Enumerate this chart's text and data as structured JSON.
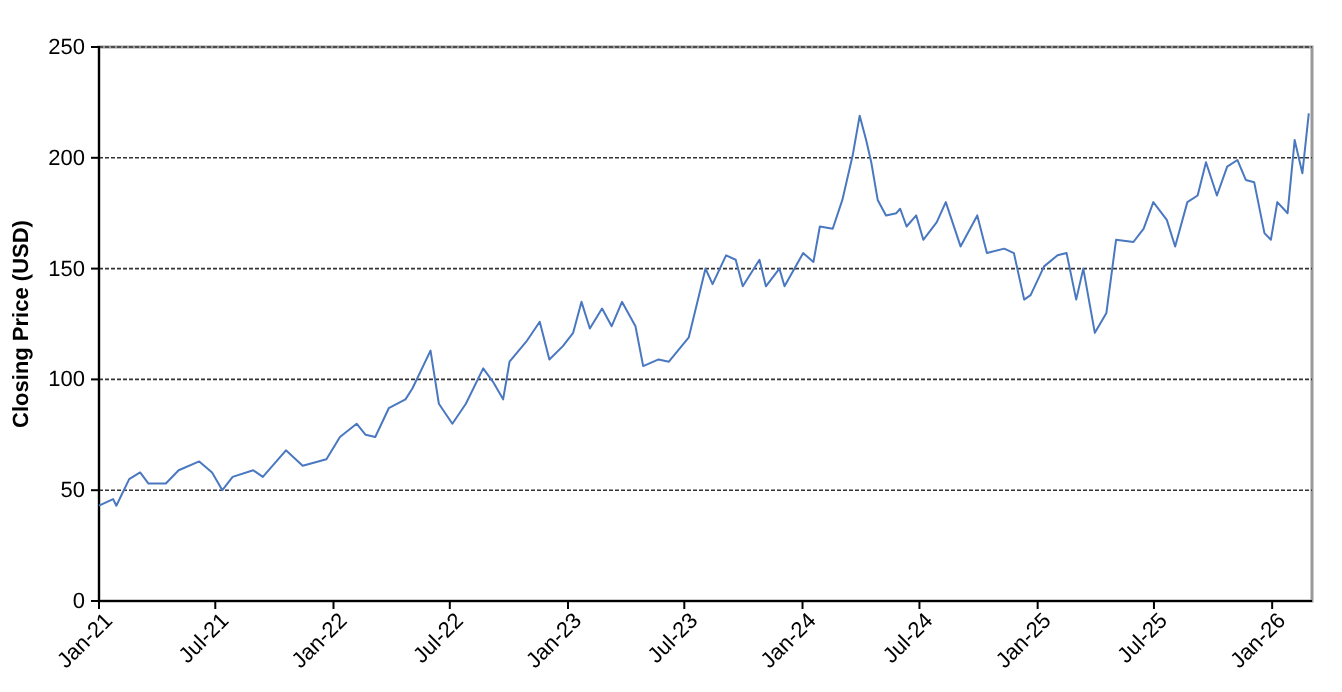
{
  "chart_data": {
    "type": "line",
    "ylabel": "Closing Price (USD)",
    "xlim": [
      "2021-01-01",
      "2026-03-04"
    ],
    "xticks": [
      {
        "value": "2021-01-01",
        "label": "Jan-21"
      },
      {
        "value": "2021-07-01",
        "label": "Jul-21"
      },
      {
        "value": "2022-01-01",
        "label": "Jan-22"
      },
      {
        "value": "2022-07-01",
        "label": "Jul-22"
      },
      {
        "value": "2023-01-01",
        "label": "Jan-23"
      },
      {
        "value": "2023-07-01",
        "label": "Jul-23"
      },
      {
        "value": "2024-01-01",
        "label": "Jan-24"
      },
      {
        "value": "2024-07-01",
        "label": "Jul-24"
      },
      {
        "value": "2025-01-01",
        "label": "Jan-25"
      },
      {
        "value": "2025-07-01",
        "label": "Jul-25"
      },
      {
        "value": "2026-01-01",
        "label": "Jan-26"
      }
    ],
    "ylim": [
      0,
      250
    ],
    "yticks": [
      0,
      50,
      100,
      150,
      200,
      250
    ],
    "grid": "y",
    "x": [
      "2021-01-01",
      "2021-01-23",
      "2021-01-28",
      "2021-02-17",
      "2021-03-06",
      "2021-03-19",
      "2021-04-15",
      "2021-05-05",
      "2021-06-06",
      "2021-06-26",
      "2021-07-12",
      "2021-07-28",
      "2021-08-29",
      "2021-09-13",
      "2021-10-19",
      "2021-11-14",
      "2021-12-21",
      "2022-01-11",
      "2022-02-06",
      "2022-02-20",
      "2022-03-07",
      "2022-03-28",
      "2022-04-23",
      "2022-05-04",
      "2022-06-01",
      "2022-06-14",
      "2022-07-05",
      "2022-07-26",
      "2022-08-22",
      "2022-09-06",
      "2022-09-22",
      "2022-10-02",
      "2022-10-28",
      "2022-11-18",
      "2022-12-03",
      "2022-12-24",
      "2023-01-09",
      "2023-01-22",
      "2023-02-04",
      "2023-02-23",
      "2023-03-10",
      "2023-03-26",
      "2023-04-16",
      "2023-04-28",
      "2023-05-22",
      "2023-06-07",
      "2023-07-08",
      "2023-08-03",
      "2023-08-14",
      "2023-09-04",
      "2023-09-19",
      "2023-09-30",
      "2023-10-26",
      "2023-11-05",
      "2023-11-26",
      "2023-12-04",
      "2024-01-02",
      "2024-01-18",
      "2024-01-28",
      "2024-02-17",
      "2024-03-03",
      "2024-03-19",
      "2024-03-30",
      "2024-04-09",
      "2024-04-17",
      "2024-04-27",
      "2024-05-10",
      "2024-05-26",
      "2024-06-01",
      "2024-06-11",
      "2024-06-26",
      "2024-07-07",
      "2024-07-28",
      "2024-08-11",
      "2024-09-03",
      "2024-09-29",
      "2024-10-14",
      "2024-11-10",
      "2024-11-25",
      "2024-12-11",
      "2024-12-21",
      "2025-01-11",
      "2025-02-01",
      "2025-02-15",
      "2025-03-02",
      "2025-03-13",
      "2025-03-31",
      "2025-04-18",
      "2025-05-03",
      "2025-05-30",
      "2025-06-15",
      "2025-06-30",
      "2025-07-21",
      "2025-08-03",
      "2025-08-22",
      "2025-09-07",
      "2025-09-20",
      "2025-10-07",
      "2025-10-23",
      "2025-11-08",
      "2025-11-21",
      "2025-12-04",
      "2025-12-20",
      "2025-12-30",
      "2026-01-09",
      "2026-01-25",
      "2026-02-05",
      "2026-02-17",
      "2026-02-27"
    ],
    "series": [
      {
        "color": "#4a78c0",
        "values": [
          43,
          46,
          43,
          55,
          58,
          53,
          53,
          59,
          63,
          58,
          50,
          56,
          59,
          56,
          68,
          61,
          64,
          74,
          80,
          75,
          74,
          87,
          91,
          96,
          113,
          89,
          80,
          89,
          105,
          99,
          91,
          108,
          117,
          126,
          109,
          115,
          121,
          135,
          123,
          132,
          124,
          135,
          124,
          106,
          109,
          108,
          119,
          150,
          143,
          156,
          154,
          142,
          154,
          142,
          150,
          142,
          157,
          153,
          169,
          168,
          181,
          201,
          219,
          208,
          198,
          181,
          174,
          175,
          177,
          169,
          174,
          163,
          171,
          180,
          160,
          174,
          157,
          159,
          157,
          136,
          138,
          151,
          156,
          157,
          136,
          150,
          121,
          130,
          163,
          162,
          168,
          180,
          172,
          160,
          180,
          183,
          198,
          183,
          196,
          199,
          190,
          189,
          166,
          163,
          180,
          175,
          208,
          193,
          220
        ]
      }
    ]
  }
}
